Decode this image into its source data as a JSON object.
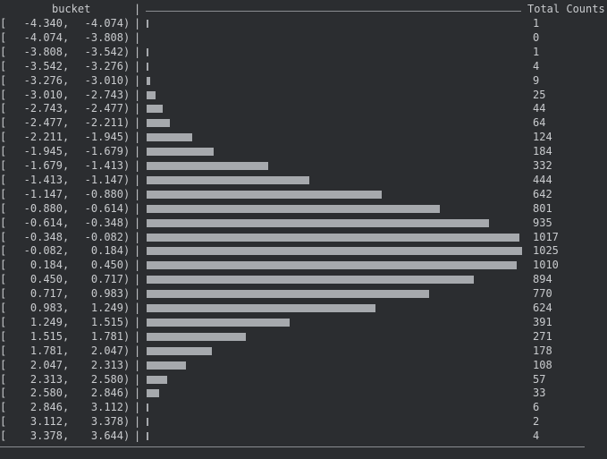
{
  "header": {
    "bucket_label": "bucket",
    "separator": "|",
    "counts_label": "Total Counts"
  },
  "colors": {
    "background": "#2b2d30",
    "text": "#c9cbce",
    "bar": "#b9bcc0"
  },
  "chart_data": {
    "type": "bar",
    "orientation": "horizontal",
    "xlabel": "bucket",
    "ylabel": "Total Counts",
    "max_count": 1025,
    "rows": [
      {
        "lo": "-4.340",
        "hi": "-4.074",
        "count": 1
      },
      {
        "lo": "-4.074",
        "hi": "-3.808",
        "count": 0
      },
      {
        "lo": "-3.808",
        "hi": "-3.542",
        "count": 1
      },
      {
        "lo": "-3.542",
        "hi": "-3.276",
        "count": 4
      },
      {
        "lo": "-3.276",
        "hi": "-3.010",
        "count": 9
      },
      {
        "lo": "-3.010",
        "hi": "-2.743",
        "count": 25
      },
      {
        "lo": "-2.743",
        "hi": "-2.477",
        "count": 44
      },
      {
        "lo": "-2.477",
        "hi": "-2.211",
        "count": 64
      },
      {
        "lo": "-2.211",
        "hi": "-1.945",
        "count": 124
      },
      {
        "lo": "-1.945",
        "hi": "-1.679",
        "count": 184
      },
      {
        "lo": "-1.679",
        "hi": "-1.413",
        "count": 332
      },
      {
        "lo": "-1.413",
        "hi": "-1.147",
        "count": 444
      },
      {
        "lo": "-1.147",
        "hi": "-0.880",
        "count": 642
      },
      {
        "lo": "-0.880",
        "hi": "-0.614",
        "count": 801
      },
      {
        "lo": "-0.614",
        "hi": "-0.348",
        "count": 935
      },
      {
        "lo": "-0.348",
        "hi": "-0.082",
        "count": 1017
      },
      {
        "lo": "-0.082",
        "hi": "0.184",
        "count": 1025
      },
      {
        "lo": "0.184",
        "hi": "0.450",
        "count": 1010
      },
      {
        "lo": "0.450",
        "hi": "0.717",
        "count": 894
      },
      {
        "lo": "0.717",
        "hi": "0.983",
        "count": 770
      },
      {
        "lo": "0.983",
        "hi": "1.249",
        "count": 624
      },
      {
        "lo": "1.249",
        "hi": "1.515",
        "count": 391
      },
      {
        "lo": "1.515",
        "hi": "1.781",
        "count": 271
      },
      {
        "lo": "1.781",
        "hi": "2.047",
        "count": 178
      },
      {
        "lo": "2.047",
        "hi": "2.313",
        "count": 108
      },
      {
        "lo": "2.313",
        "hi": "2.580",
        "count": 57
      },
      {
        "lo": "2.580",
        "hi": "2.846",
        "count": 33
      },
      {
        "lo": "2.846",
        "hi": "3.112",
        "count": 6
      },
      {
        "lo": "3.112",
        "hi": "3.378",
        "count": 2
      },
      {
        "lo": "3.378",
        "hi": "3.644",
        "count": 4
      }
    ]
  }
}
